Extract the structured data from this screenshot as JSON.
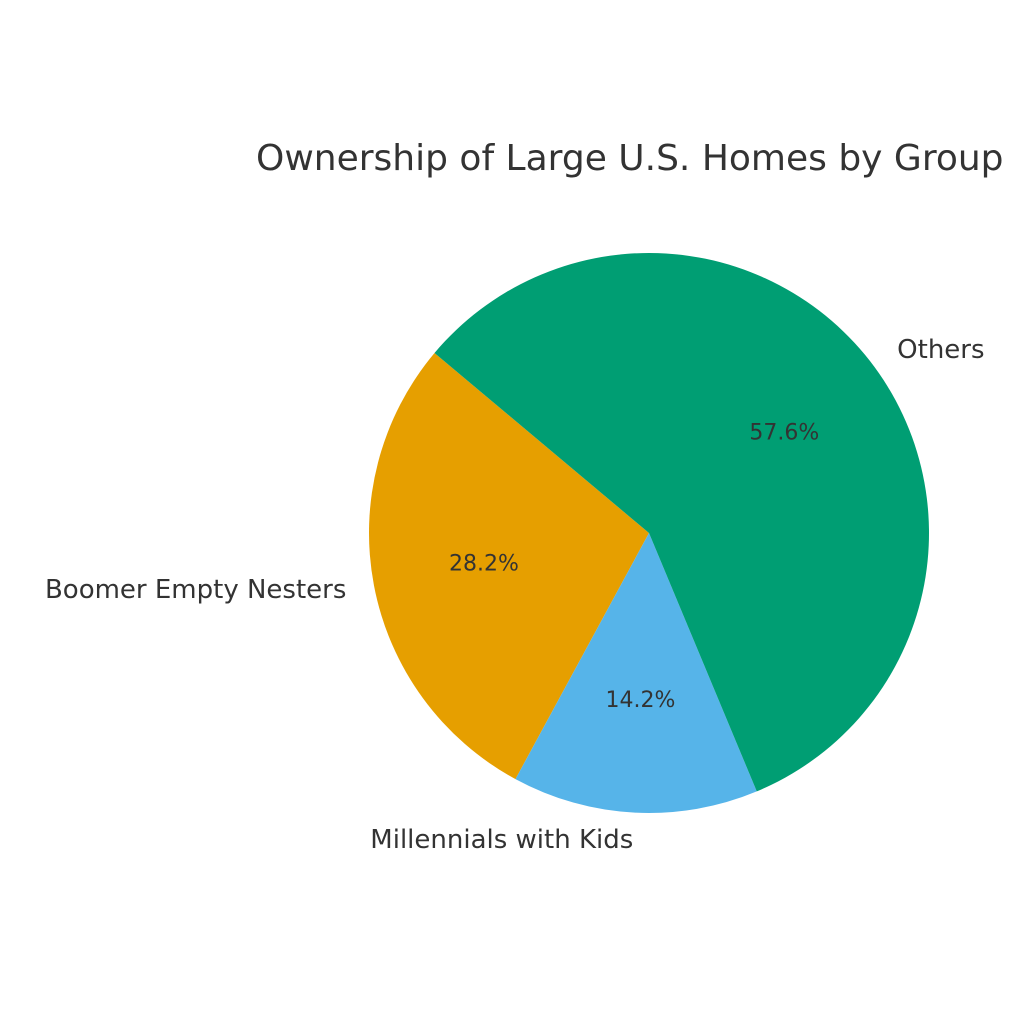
{
  "chart_data": {
    "type": "pie",
    "title": "Ownership of Large U.S. Homes by Group",
    "slices": [
      {
        "label": "Boomer Empty Nesters",
        "value": 28.2,
        "display": "28.2%",
        "color": "#E69F00"
      },
      {
        "label": "Millennials with Kids",
        "value": 14.2,
        "display": "14.2%",
        "color": "#56B4E9"
      },
      {
        "label": "Others",
        "value": 57.6,
        "display": "57.6%",
        "color": "#009E73"
      }
    ],
    "start_angle_deg": 140,
    "direction": "counterclockwise",
    "legend": "none"
  }
}
